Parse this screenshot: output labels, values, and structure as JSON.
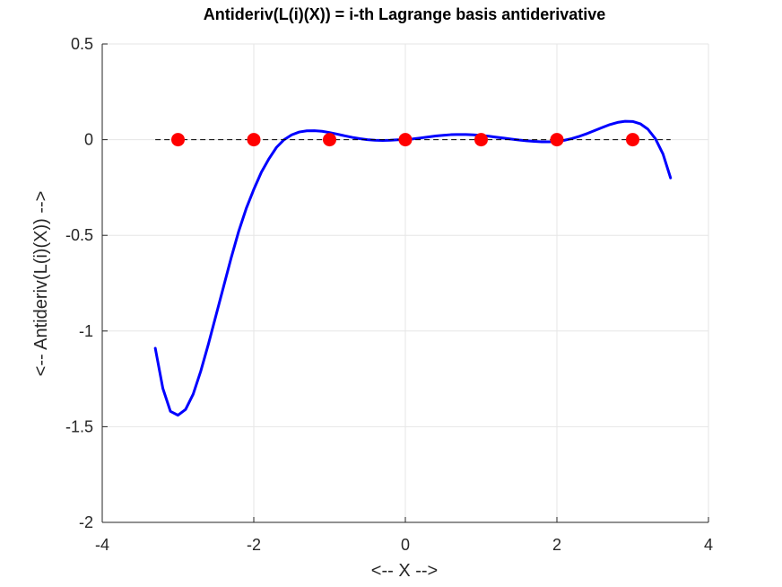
{
  "chart_data": {
    "type": "line",
    "title": "Antideriv(L(i)(X)) = i-th Lagrange basis antiderivative",
    "xlabel": "<-- X -->",
    "ylabel": "<-- Antideriv(L(i)(X)) -->",
    "xlim": [
      -4,
      4
    ],
    "ylim": [
      -2,
      0.5
    ],
    "xticks": [
      -4,
      -2,
      0,
      2,
      4
    ],
    "xtick_labels": [
      "-4",
      "-2",
      "0",
      "2",
      "4"
    ],
    "yticks": [
      -2,
      -1.5,
      -1,
      -0.5,
      0,
      0.5
    ],
    "ytick_labels": [
      "-2",
      "-1.5",
      "-1",
      "-0.5",
      "0",
      "0.5"
    ],
    "grid": true,
    "series": [
      {
        "kind": "curve",
        "color": "#0000ff",
        "style": "solid",
        "x": [
          -3.3,
          -3.2,
          -3.1,
          -3.0,
          -2.9,
          -2.8,
          -2.7,
          -2.6,
          -2.5,
          -2.4,
          -2.3,
          -2.2,
          -2.1,
          -2.0,
          -1.9,
          -1.8,
          -1.7,
          -1.6,
          -1.5,
          -1.4,
          -1.3,
          -1.2,
          -1.1,
          -1.0,
          -0.9,
          -0.8,
          -0.7,
          -0.6,
          -0.5,
          -0.4,
          -0.3,
          -0.2,
          -0.1,
          0.0,
          0.1,
          0.2,
          0.3,
          0.4,
          0.5,
          0.6,
          0.7,
          0.8,
          0.9,
          1.0,
          1.1,
          1.2,
          1.3,
          1.4,
          1.5,
          1.6,
          1.7,
          1.8,
          1.9,
          2.0,
          2.1,
          2.2,
          2.3,
          2.4,
          2.5,
          2.6,
          2.7,
          2.8,
          2.9,
          3.0,
          3.1,
          3.2,
          3.3,
          3.4,
          3.5
        ],
        "y": [
          -1.09,
          -1.3,
          -1.42,
          -1.44,
          -1.41,
          -1.33,
          -1.21,
          -1.07,
          -0.92,
          -0.77,
          -0.62,
          -0.48,
          -0.36,
          -0.26,
          -0.17,
          -0.1,
          -0.04,
          0.0,
          0.025,
          0.04,
          0.046,
          0.047,
          0.044,
          0.037,
          0.029,
          0.02,
          0.012,
          0.005,
          0.0,
          -0.003,
          -0.004,
          -0.003,
          -0.001,
          0.0,
          0.004,
          0.009,
          0.014,
          0.019,
          0.023,
          0.026,
          0.027,
          0.027,
          0.025,
          0.022,
          0.018,
          0.013,
          0.008,
          0.003,
          -0.002,
          -0.006,
          -0.009,
          -0.011,
          -0.011,
          -0.009,
          -0.003,
          0.006,
          0.018,
          0.032,
          0.048,
          0.064,
          0.079,
          0.09,
          0.096,
          0.095,
          0.083,
          0.055,
          0.005,
          -0.075,
          -0.2
        ]
      },
      {
        "kind": "baseline",
        "color": "#000000",
        "style": "dashed",
        "x": [
          -3.3,
          3.5
        ],
        "y": [
          0,
          0
        ]
      },
      {
        "kind": "points",
        "color": "#ff0000",
        "marker": "filled-circle",
        "x": [
          -3,
          -2,
          -1,
          0,
          1,
          2,
          3
        ],
        "y": [
          0,
          0,
          0,
          0,
          0,
          0,
          0
        ]
      }
    ]
  }
}
